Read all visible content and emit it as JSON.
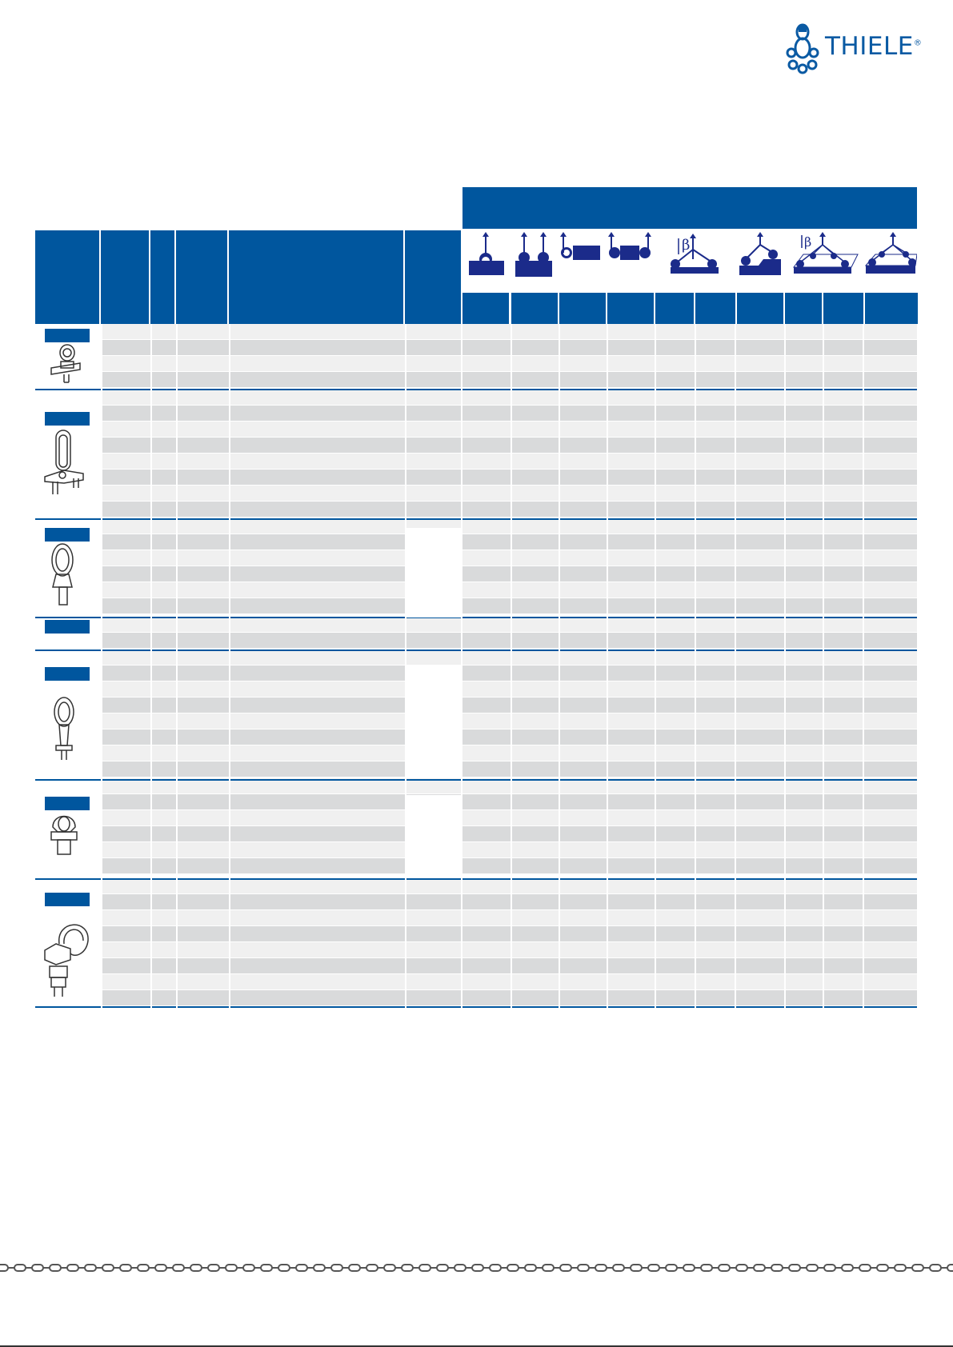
{
  "brand": {
    "name": "THIELE",
    "registered": "®"
  },
  "colors": {
    "brand_blue": "#00569e",
    "row_dark": "#d9dadb",
    "row_light": "#f0f0f0"
  },
  "table": {
    "header_icons": [
      "single-lift-icon",
      "two-leg-lift-icon",
      "side-pull-icon",
      "double-side-pull-icon",
      "angled-two-leg-icon",
      "uneven-two-leg-icon",
      "three-leg-beta-icon",
      "four-leg-lift-icon"
    ],
    "product_groups": [
      {
        "product_icon": "swivel-eye-bolt-icon"
      },
      {
        "product_icon": "swivel-hoist-ring-large-icon"
      },
      {
        "product_icon": "oval-ring-swivel-icon"
      },
      {
        "product_icon": "blank-group-icon"
      },
      {
        "product_icon": "threaded-oval-ring-icon"
      },
      {
        "product_icon": "eye-nut-swivel-icon"
      },
      {
        "product_icon": "heavy-duty-lifting-point-icon"
      }
    ]
  },
  "footer": {
    "decoration": "chain-border-icon"
  }
}
